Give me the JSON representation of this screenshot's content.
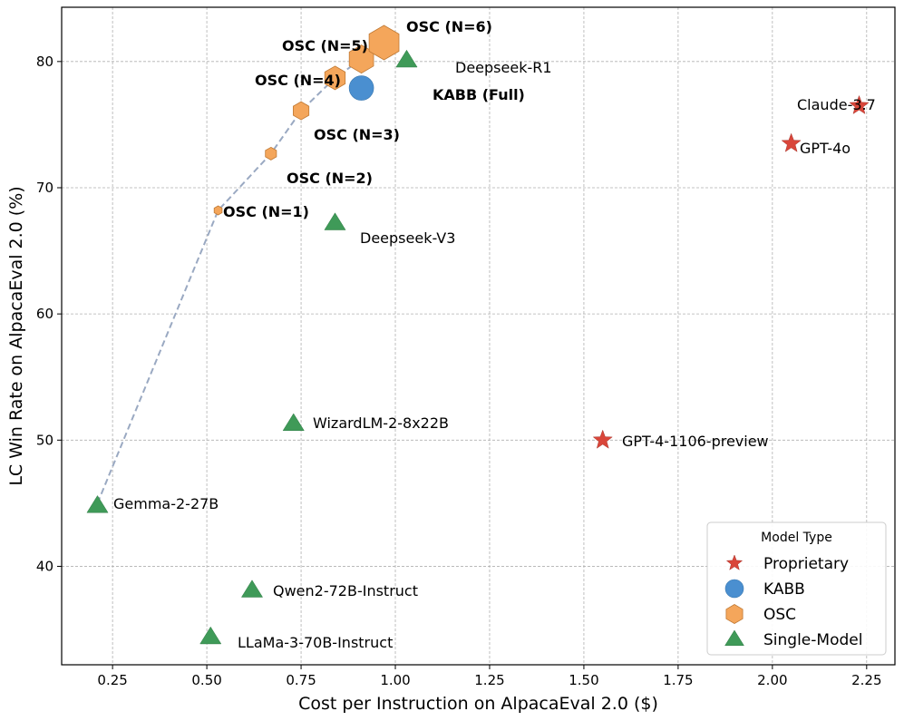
{
  "chart_data": {
    "type": "scatter",
    "title": "",
    "xlabel": "Cost per Instruction on AlpacaEval 2.0 ($)",
    "ylabel": "LC Win Rate on AlpacaEval 2.0 (%)",
    "xlim": [
      0.115,
      2.325
    ],
    "ylim": [
      32.2,
      84.3
    ],
    "xticks": [
      0.25,
      0.5,
      0.75,
      1.0,
      1.25,
      1.5,
      1.75,
      2.0,
      2.25
    ],
    "xtick_labels": [
      "0.25",
      "0.50",
      "0.75",
      "1.00",
      "1.25",
      "1.50",
      "1.75",
      "2.00",
      "2.25"
    ],
    "yticks": [
      40,
      50,
      60,
      70,
      80
    ],
    "ytick_labels": [
      "40",
      "50",
      "60",
      "70",
      "80"
    ],
    "grid": true,
    "colors": {
      "Proprietary": "#d9463a",
      "KABB": "#4a8fd0",
      "OSC": "#f4a65b",
      "Single-Model": "#3f9a58",
      "frontier_line": "#9aa9c2"
    },
    "legend": {
      "title": "Model Type",
      "location": "lower-right",
      "entries": [
        "Proprietary",
        "KABB",
        "OSC",
        "Single-Model"
      ]
    },
    "frontier_line": {
      "style": "dashed",
      "x": [
        0.21,
        0.53,
        0.67,
        0.75,
        0.84,
        0.91,
        0.97
      ],
      "y": [
        45.0,
        68.2,
        72.7,
        76.1,
        78.7,
        80.2,
        81.5
      ]
    },
    "points": [
      {
        "label": "OSC (N=1)",
        "type": "OSC",
        "x": 0.53,
        "y": 68.2,
        "bold": true
      },
      {
        "label": "OSC (N=2)",
        "type": "OSC",
        "x": 0.67,
        "y": 72.7,
        "bold": true
      },
      {
        "label": "OSC (N=3)",
        "type": "OSC",
        "x": 0.75,
        "y": 76.1,
        "bold": true
      },
      {
        "label": "OSC (N=4)",
        "type": "OSC",
        "x": 0.84,
        "y": 78.7,
        "bold": true
      },
      {
        "label": "OSC (N=5)",
        "type": "OSC",
        "x": 0.91,
        "y": 80.2,
        "bold": true
      },
      {
        "label": "OSC (N=6)",
        "type": "OSC",
        "x": 0.97,
        "y": 81.5,
        "bold": true
      },
      {
        "label": "KABB (Full)",
        "type": "KABB",
        "x": 0.91,
        "y": 77.9,
        "bold": true
      },
      {
        "label": "Deepseek-R1",
        "type": "Single-Model",
        "x": 1.03,
        "y": 80.1,
        "bold": false
      },
      {
        "label": "Deepseek-V3",
        "type": "Single-Model",
        "x": 0.84,
        "y": 67.2,
        "bold": false
      },
      {
        "label": "WizardLM-2-8x22B",
        "type": "Single-Model",
        "x": 0.73,
        "y": 51.3,
        "bold": false
      },
      {
        "label": "Gemma-2-27B",
        "type": "Single-Model",
        "x": 0.21,
        "y": 44.8,
        "bold": false
      },
      {
        "label": "Qwen2-72B-Instruct",
        "type": "Single-Model",
        "x": 0.62,
        "y": 38.1,
        "bold": false
      },
      {
        "label": "LLaMa-3-70B-Instruct",
        "type": "Single-Model",
        "x": 0.51,
        "y": 34.4,
        "bold": false
      },
      {
        "label": "Claude-3.7",
        "type": "Proprietary",
        "x": 2.23,
        "y": 76.5,
        "bold": false
      },
      {
        "label": "GPT-4o",
        "type": "Proprietary",
        "x": 2.05,
        "y": 73.5,
        "bold": false
      },
      {
        "label": "GPT-4-1106-preview",
        "type": "Proprietary",
        "x": 1.55,
        "y": 50.0,
        "bold": false
      }
    ]
  }
}
